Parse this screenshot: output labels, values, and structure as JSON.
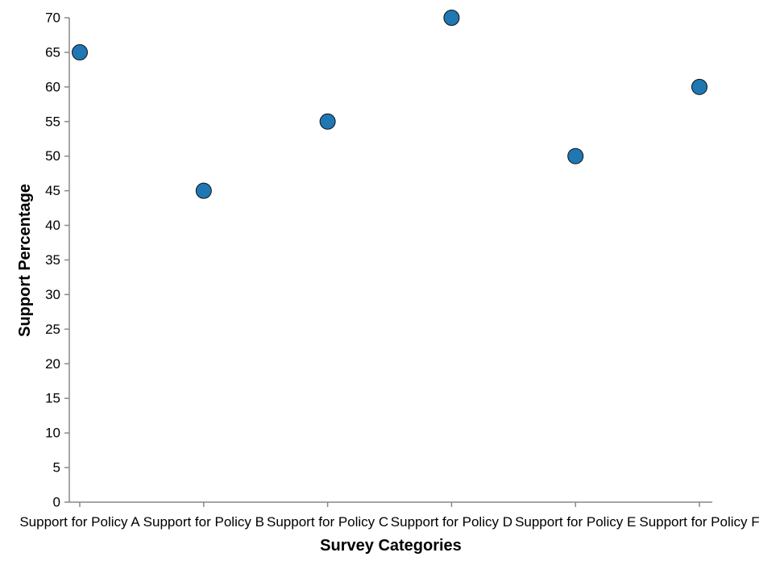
{
  "chart_data": {
    "type": "scatter",
    "categories": [
      "Support for Policy A",
      "Support for Policy B",
      "Support for Policy C",
      "Support for Policy D",
      "Support for Policy E",
      "Support for Policy F"
    ],
    "values": [
      65,
      45,
      55,
      70,
      50,
      60
    ],
    "xlabel": "Survey Categories",
    "ylabel": "Support Percentage",
    "ylim": [
      0,
      70
    ],
    "yticks": [
      0,
      5,
      10,
      15,
      20,
      25,
      30,
      35,
      40,
      45,
      50,
      55,
      60,
      65,
      70
    ],
    "grid": false,
    "colors": {
      "point_fill": "#1f77b4",
      "point_stroke": "#111111",
      "axis": "#888888"
    }
  }
}
